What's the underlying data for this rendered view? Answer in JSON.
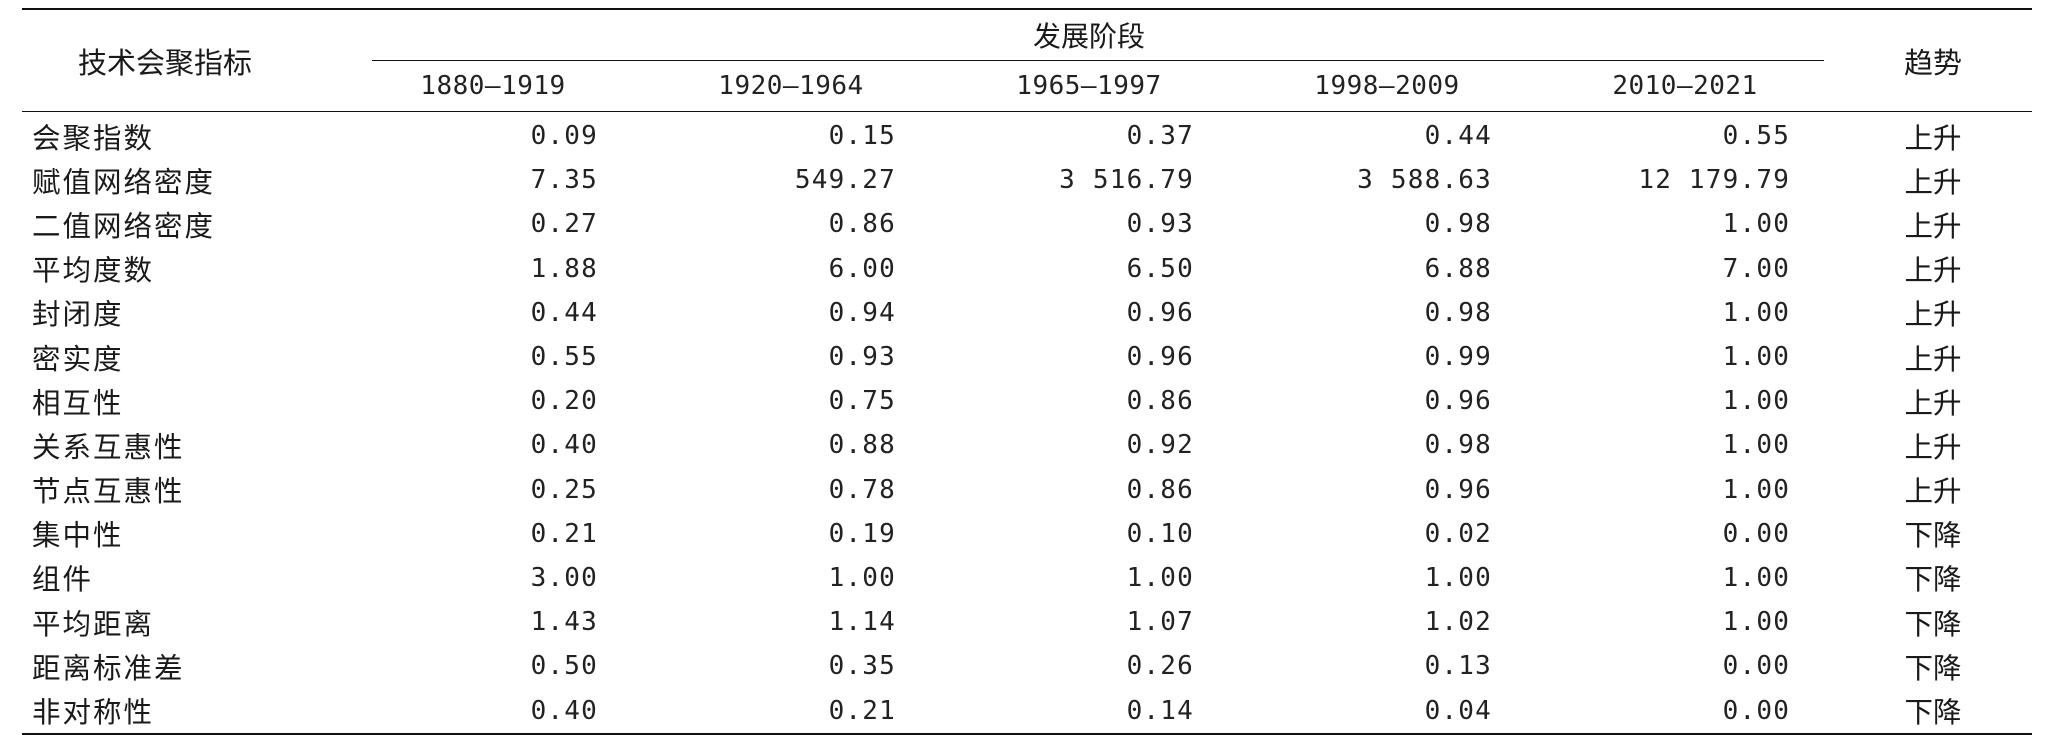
{
  "table": {
    "label_header": "技术会聚指标",
    "group_header": "发展阶段",
    "trend_header": "趋势",
    "periods": [
      "1880—1919",
      "1920—1964",
      "1965—1997",
      "1998—2009",
      "2010—2021"
    ],
    "rows": [
      {
        "label": "会聚指数",
        "values": [
          "0.09",
          "0.15",
          "0.37",
          "0.44",
          "0.55"
        ],
        "trend": "上升"
      },
      {
        "label": "赋值网络密度",
        "values": [
          "7.35",
          "549.27",
          "3 516.79",
          "3 588.63",
          "12 179.79"
        ],
        "trend": "上升"
      },
      {
        "label": "二值网络密度",
        "values": [
          "0.27",
          "0.86",
          "0.93",
          "0.98",
          "1.00"
        ],
        "trend": "上升"
      },
      {
        "label": "平均度数",
        "values": [
          "1.88",
          "6.00",
          "6.50",
          "6.88",
          "7.00"
        ],
        "trend": "上升"
      },
      {
        "label": "封闭度",
        "values": [
          "0.44",
          "0.94",
          "0.96",
          "0.98",
          "1.00"
        ],
        "trend": "上升"
      },
      {
        "label": "密实度",
        "values": [
          "0.55",
          "0.93",
          "0.96",
          "0.99",
          "1.00"
        ],
        "trend": "上升"
      },
      {
        "label": "相互性",
        "values": [
          "0.20",
          "0.75",
          "0.86",
          "0.96",
          "1.00"
        ],
        "trend": "上升"
      },
      {
        "label": "关系互惠性",
        "values": [
          "0.40",
          "0.88",
          "0.92",
          "0.98",
          "1.00"
        ],
        "trend": "上升"
      },
      {
        "label": "节点互惠性",
        "values": [
          "0.25",
          "0.78",
          "0.86",
          "0.96",
          "1.00"
        ],
        "trend": "上升"
      },
      {
        "label": "集中性",
        "values": [
          "0.21",
          "0.19",
          "0.10",
          "0.02",
          "0.00"
        ],
        "trend": "下降"
      },
      {
        "label": "组件",
        "values": [
          "3.00",
          "1.00",
          "1.00",
          "1.00",
          "1.00"
        ],
        "trend": "下降"
      },
      {
        "label": "平均距离",
        "values": [
          "1.43",
          "1.14",
          "1.07",
          "1.02",
          "1.00"
        ],
        "trend": "下降"
      },
      {
        "label": "距离标准差",
        "values": [
          "0.50",
          "0.35",
          "0.26",
          "0.13",
          "0.00"
        ],
        "trend": "下降"
      },
      {
        "label": "非对称性",
        "values": [
          "0.40",
          "0.21",
          "0.14",
          "0.04",
          "0.00"
        ],
        "trend": "下降"
      }
    ]
  }
}
